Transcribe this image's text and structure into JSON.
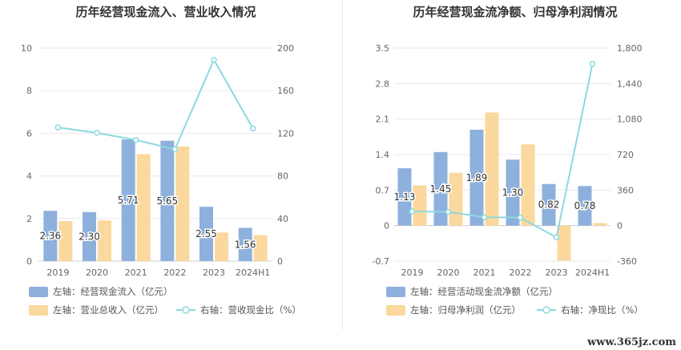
{
  "watermark": "www.365jz.com",
  "colors": {
    "bar_left": "#8eb0dc",
    "bar_right": "#fbd89d",
    "line": "#8dd9df",
    "grid": "#e8e8e8",
    "axis_text": "#666666",
    "legend_text": "#555555",
    "title_text": "#333333"
  },
  "chart_data": [
    {
      "type": "bar",
      "title": "历年经营现金流入、营业收入情况",
      "categories": [
        "2019",
        "2020",
        "2021",
        "2022",
        "2023",
        "2024H1"
      ],
      "left_axis": {
        "ticks": [
          "0",
          "2",
          "4",
          "6",
          "8",
          "10"
        ],
        "ylim": [
          0,
          10
        ]
      },
      "right_axis": {
        "ticks": [
          "0",
          "40",
          "80",
          "120",
          "160",
          "200"
        ],
        "ylim": [
          0,
          200
        ]
      },
      "series": [
        {
          "name": "左轴：经营现金流入（亿元）",
          "type": "bar",
          "axis": "left",
          "values": [
            2.36,
            2.3,
            5.71,
            5.65,
            2.55,
            1.56
          ],
          "labels": [
            "2.36",
            "2.30",
            "5.71",
            "5.65",
            "2.55",
            "1.56"
          ]
        },
        {
          "name": "左轴：营业总收入（亿元）",
          "type": "bar",
          "axis": "left",
          "values": [
            1.88,
            1.91,
            5.02,
            5.38,
            1.34,
            1.22
          ]
        },
        {
          "name": "右轴：营收现金比（%）",
          "type": "line",
          "axis": "right",
          "values": [
            125.5,
            120.4,
            113.7,
            105.0,
            189.0,
            124.5
          ]
        }
      ],
      "legend": [
        {
          "text": "左轴：经营现金流入（亿元）",
          "kind": "bar-left"
        },
        {
          "text": "左轴：营业总收入（亿元）",
          "kind": "bar-right"
        },
        {
          "text": "右轴：营收现金比（%）",
          "kind": "line"
        }
      ]
    },
    {
      "type": "bar",
      "title": "历年经营现金流净额、归母净利润情况",
      "categories": [
        "2019",
        "2020",
        "2021",
        "2022",
        "2023",
        "2024H1"
      ],
      "left_axis": {
        "ticks": [
          "-0.7",
          "0",
          "0.7",
          "1.4",
          "2.1",
          "2.8",
          "3.5"
        ],
        "ylim": [
          -0.7,
          3.5
        ]
      },
      "right_axis": {
        "ticks": [
          "-360",
          "0",
          "360",
          "720",
          "1,080",
          "1,440",
          "1,800"
        ],
        "ylim": [
          -360,
          1800
        ]
      },
      "series": [
        {
          "name": "左轴：经营活动现金流净额（亿元）",
          "type": "bar",
          "axis": "left",
          "values": [
            1.13,
            1.45,
            1.89,
            1.3,
            0.82,
            0.78
          ],
          "labels": [
            "1.13",
            "1.45",
            "1.89",
            "1.30",
            "0.82",
            "0.78"
          ]
        },
        {
          "name": "左轴：归母净利润（亿元）",
          "type": "bar",
          "axis": "left",
          "values": [
            0.79,
            1.04,
            2.23,
            1.6,
            -0.69,
            0.05
          ]
        },
        {
          "name": "右轴：净现比（%）",
          "type": "line",
          "axis": "right",
          "values": [
            143,
            139,
            85,
            81,
            -119,
            1640
          ]
        }
      ],
      "legend": [
        {
          "text": "左轴：经营活动现金流净额（亿元）",
          "kind": "bar-left"
        },
        {
          "text": "左轴：归母净利润（亿元）",
          "kind": "bar-right"
        },
        {
          "text": "右轴：净现比（%）",
          "kind": "line"
        }
      ]
    }
  ]
}
